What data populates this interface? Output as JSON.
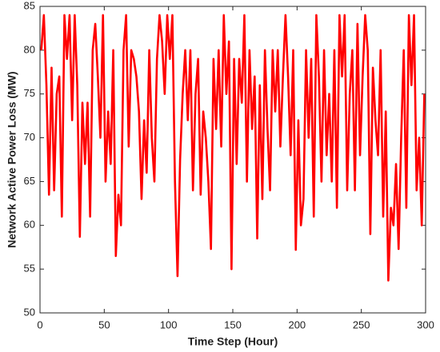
{
  "chart_data": {
    "type": "line",
    "x_label": "Time Step (Hour)",
    "y_label": "Network Active Power Loss (MW)",
    "color": "#ff0000",
    "x": [
      1,
      3,
      5,
      7,
      9,
      11,
      13,
      15,
      17,
      19,
      21,
      23,
      25,
      27,
      29,
      31,
      33,
      35,
      37,
      39,
      41,
      43,
      45,
      47,
      49,
      51,
      53,
      55,
      57,
      59,
      61,
      63,
      65,
      67,
      69,
      71,
      73,
      75,
      77,
      79,
      81,
      83,
      85,
      87,
      89,
      91,
      93,
      95,
      97,
      99,
      101,
      103,
      105,
      107,
      109,
      111,
      113,
      115,
      117,
      119,
      121,
      123,
      125,
      127,
      129,
      131,
      133,
      135,
      137,
      139,
      141,
      143,
      145,
      147,
      149,
      151,
      153,
      155,
      157,
      159,
      161,
      163,
      165,
      167,
      169,
      171,
      173,
      175,
      177,
      179,
      181,
      183,
      185,
      187,
      189,
      191,
      193,
      195,
      197,
      199,
      201,
      203,
      205,
      207,
      209,
      211,
      213,
      215,
      217,
      219,
      221,
      223,
      225,
      227,
      229,
      231,
      233,
      235,
      237,
      239,
      241,
      243,
      245,
      247,
      249,
      251,
      253,
      255,
      257,
      259,
      261,
      263,
      265,
      267,
      269,
      271,
      273,
      275,
      277,
      279,
      281,
      283,
      285,
      287,
      289,
      291,
      293,
      295,
      297,
      299
    ],
    "values": [
      80,
      84,
      76,
      63.5,
      78,
      64,
      75,
      77,
      61,
      84,
      79,
      84,
      72,
      84,
      76,
      58.7,
      74,
      67,
      74,
      61,
      80,
      83,
      77,
      70,
      84,
      65,
      73,
      67,
      80,
      56.5,
      63.5,
      60,
      80,
      84,
      69,
      80,
      79,
      77,
      73,
      63,
      72,
      66,
      80,
      70,
      65,
      79,
      84,
      81,
      75,
      84,
      79,
      84,
      65,
      54.2,
      67.5,
      75,
      80,
      72,
      80,
      64,
      75,
      79,
      63.5,
      73,
      70,
      65,
      57.3,
      79,
      71,
      80,
      69,
      84,
      75,
      81,
      55,
      79,
      67,
      79,
      74,
      84,
      65,
      80,
      71,
      77,
      58.5,
      76,
      63,
      80,
      71,
      64,
      80,
      73,
      80,
      69,
      77,
      84,
      77,
      68,
      80,
      57.2,
      72,
      60,
      63,
      80,
      70,
      79,
      61,
      84,
      77,
      65,
      80,
      68,
      75,
      65,
      80,
      62,
      84,
      77,
      84,
      64,
      75,
      80,
      64,
      83,
      68,
      77,
      84,
      80,
      59,
      78,
      72,
      68,
      80,
      61,
      73,
      53.7,
      62,
      60,
      67,
      57.3,
      70,
      80,
      62,
      84,
      76,
      84,
      64,
      70,
      60,
      75
    ],
    "xlim": [
      0,
      300
    ],
    "xticks": [
      0,
      50,
      100,
      150,
      200,
      250,
      300
    ],
    "ylim": [
      50,
      85
    ],
    "yticks": [
      50,
      55,
      60,
      65,
      70,
      75,
      80,
      85
    ]
  }
}
